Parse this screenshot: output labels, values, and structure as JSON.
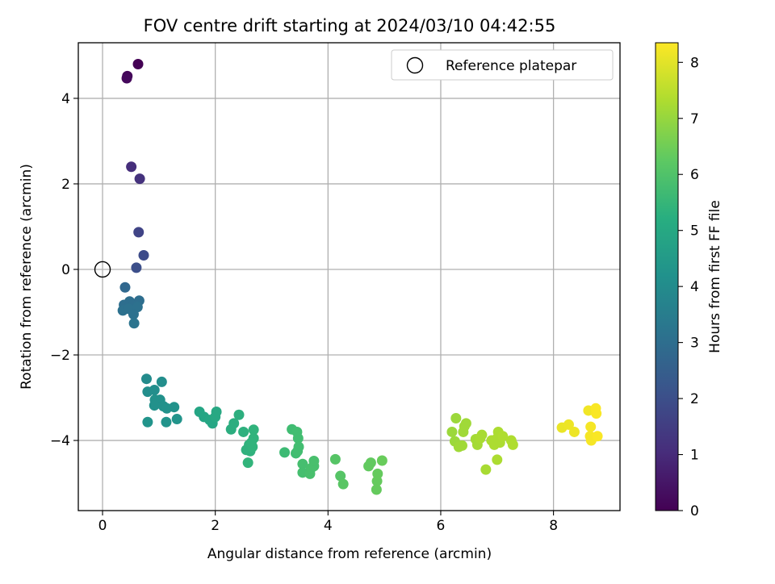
{
  "chart_data": {
    "type": "scatter",
    "title": "FOV centre drift starting at 2024/03/10 04:42:55",
    "xlabel": "Angular distance from reference (arcmin)",
    "ylabel": "Rotation from reference (arcmin)",
    "xlim": [
      -0.43,
      9.18
    ],
    "ylim": [
      -5.64,
      5.3
    ],
    "xticks": [
      0,
      2,
      4,
      6,
      8
    ],
    "yticks": [
      -4,
      -2,
      0,
      2,
      4
    ],
    "xtick_labels": [
      "0",
      "2",
      "4",
      "6",
      "8"
    ],
    "ytick_labels": [
      "−4",
      "−2",
      "0",
      "2",
      "4"
    ],
    "grid": true,
    "legend": {
      "position": "upper right",
      "entries": [
        "Reference platepar"
      ]
    },
    "reference_point": {
      "x": 0,
      "y": 0,
      "label": "Reference platepar"
    },
    "colorbar": {
      "label": "Hours from first FF file",
      "range": [
        0,
        8.35
      ],
      "ticks": [
        0,
        1,
        2,
        3,
        4,
        5,
        6,
        7,
        8
      ],
      "tick_labels": [
        "0",
        "1",
        "2",
        "3",
        "4",
        "5",
        "6",
        "7",
        "8"
      ],
      "colormap": "viridis"
    },
    "points": [
      {
        "x": 0.63,
        "y": 4.8,
        "c": 0.0
      },
      {
        "x": 0.44,
        "y": 4.52,
        "c": 0.1
      },
      {
        "x": 0.43,
        "y": 4.47,
        "c": 0.2
      },
      {
        "x": 0.51,
        "y": 2.4,
        "c": 1.1
      },
      {
        "x": 0.66,
        "y": 2.12,
        "c": 1.2
      },
      {
        "x": 0.64,
        "y": 0.87,
        "c": 1.7
      },
      {
        "x": 0.73,
        "y": 0.33,
        "c": 1.9
      },
      {
        "x": 0.6,
        "y": 0.04,
        "c": 2.0
      },
      {
        "x": 0.4,
        "y": -0.42,
        "c": 2.8
      },
      {
        "x": 0.38,
        "y": -0.83,
        "c": 3.0
      },
      {
        "x": 0.48,
        "y": -0.75,
        "c": 3.0
      },
      {
        "x": 0.65,
        "y": -0.73,
        "c": 3.0
      },
      {
        "x": 0.55,
        "y": -0.83,
        "c": 3.0
      },
      {
        "x": 0.36,
        "y": -0.96,
        "c": 3.1
      },
      {
        "x": 0.46,
        "y": -0.92,
        "c": 3.1
      },
      {
        "x": 0.62,
        "y": -0.88,
        "c": 3.1
      },
      {
        "x": 0.55,
        "y": -1.05,
        "c": 3.1
      },
      {
        "x": 0.56,
        "y": -1.26,
        "c": 3.2
      },
      {
        "x": 0.78,
        "y": -2.56,
        "c": 4.0
      },
      {
        "x": 0.8,
        "y": -2.86,
        "c": 4.1
      },
      {
        "x": 0.92,
        "y": -2.82,
        "c": 4.1
      },
      {
        "x": 1.05,
        "y": -2.63,
        "c": 4.1
      },
      {
        "x": 0.93,
        "y": -3.05,
        "c": 4.2
      },
      {
        "x": 0.97,
        "y": -3.12,
        "c": 4.2
      },
      {
        "x": 1.02,
        "y": -3.05,
        "c": 4.2
      },
      {
        "x": 0.92,
        "y": -3.18,
        "c": 4.2
      },
      {
        "x": 1.08,
        "y": -3.2,
        "c": 4.2
      },
      {
        "x": 1.14,
        "y": -3.25,
        "c": 4.25
      },
      {
        "x": 1.27,
        "y": -3.22,
        "c": 4.25
      },
      {
        "x": 1.32,
        "y": -3.5,
        "c": 4.3
      },
      {
        "x": 1.13,
        "y": -3.57,
        "c": 4.3
      },
      {
        "x": 0.8,
        "y": -3.57,
        "c": 4.3
      },
      {
        "x": 1.72,
        "y": -3.33,
        "c": 4.9
      },
      {
        "x": 1.8,
        "y": -3.45,
        "c": 4.9
      },
      {
        "x": 1.9,
        "y": -3.52,
        "c": 4.95
      },
      {
        "x": 1.95,
        "y": -3.6,
        "c": 4.95
      },
      {
        "x": 2.0,
        "y": -3.45,
        "c": 5.0
      },
      {
        "x": 2.02,
        "y": -3.33,
        "c": 5.0
      },
      {
        "x": 2.28,
        "y": -3.74,
        "c": 5.2
      },
      {
        "x": 2.33,
        "y": -3.6,
        "c": 5.2
      },
      {
        "x": 2.42,
        "y": -3.4,
        "c": 5.25
      },
      {
        "x": 2.5,
        "y": -3.8,
        "c": 5.3
      },
      {
        "x": 2.55,
        "y": -4.22,
        "c": 5.35
      },
      {
        "x": 2.6,
        "y": -4.1,
        "c": 5.35
      },
      {
        "x": 2.62,
        "y": -4.25,
        "c": 5.35
      },
      {
        "x": 2.66,
        "y": -4.15,
        "c": 5.4
      },
      {
        "x": 2.68,
        "y": -3.95,
        "c": 5.4
      },
      {
        "x": 2.68,
        "y": -3.75,
        "c": 5.4
      },
      {
        "x": 2.64,
        "y": -4.05,
        "c": 5.4
      },
      {
        "x": 2.58,
        "y": -4.52,
        "c": 5.45
      },
      {
        "x": 3.23,
        "y": -4.28,
        "c": 5.7
      },
      {
        "x": 3.36,
        "y": -3.74,
        "c": 5.75
      },
      {
        "x": 3.43,
        "y": -4.3,
        "c": 5.75
      },
      {
        "x": 3.45,
        "y": -3.8,
        "c": 5.8
      },
      {
        "x": 3.47,
        "y": -3.95,
        "c": 5.8
      },
      {
        "x": 3.48,
        "y": -4.15,
        "c": 5.8
      },
      {
        "x": 3.46,
        "y": -4.25,
        "c": 5.8
      },
      {
        "x": 3.55,
        "y": -4.55,
        "c": 5.85
      },
      {
        "x": 3.55,
        "y": -4.75,
        "c": 5.85
      },
      {
        "x": 3.68,
        "y": -4.78,
        "c": 5.9
      },
      {
        "x": 3.7,
        "y": -4.65,
        "c": 5.9
      },
      {
        "x": 3.75,
        "y": -4.6,
        "c": 5.9
      },
      {
        "x": 3.75,
        "y": -4.48,
        "c": 5.9
      },
      {
        "x": 4.13,
        "y": -4.44,
        "c": 6.1
      },
      {
        "x": 4.22,
        "y": -4.83,
        "c": 6.1
      },
      {
        "x": 4.27,
        "y": -5.02,
        "c": 6.15
      },
      {
        "x": 4.72,
        "y": -4.6,
        "c": 6.3
      },
      {
        "x": 4.76,
        "y": -4.52,
        "c": 6.3
      },
      {
        "x": 4.88,
        "y": -4.78,
        "c": 6.35
      },
      {
        "x": 4.87,
        "y": -4.95,
        "c": 6.35
      },
      {
        "x": 4.86,
        "y": -5.15,
        "c": 6.35
      },
      {
        "x": 4.96,
        "y": -4.47,
        "c": 6.4
      },
      {
        "x": 6.2,
        "y": -3.8,
        "c": 7.1
      },
      {
        "x": 6.27,
        "y": -3.48,
        "c": 7.1
      },
      {
        "x": 6.25,
        "y": -4.02,
        "c": 7.1
      },
      {
        "x": 6.32,
        "y": -4.15,
        "c": 7.15
      },
      {
        "x": 6.38,
        "y": -4.12,
        "c": 7.15
      },
      {
        "x": 6.42,
        "y": -3.67,
        "c": 7.15
      },
      {
        "x": 6.45,
        "y": -3.6,
        "c": 7.15
      },
      {
        "x": 6.4,
        "y": -3.8,
        "c": 7.15
      },
      {
        "x": 6.62,
        "y": -3.97,
        "c": 7.2
      },
      {
        "x": 6.65,
        "y": -4.1,
        "c": 7.2
      },
      {
        "x": 6.7,
        "y": -3.95,
        "c": 7.25
      },
      {
        "x": 6.73,
        "y": -3.87,
        "c": 7.25
      },
      {
        "x": 6.8,
        "y": -4.68,
        "c": 7.25
      },
      {
        "x": 6.9,
        "y": -4.0,
        "c": 7.3
      },
      {
        "x": 6.95,
        "y": -4.1,
        "c": 7.3
      },
      {
        "x": 7.0,
        "y": -3.95,
        "c": 7.3
      },
      {
        "x": 7.02,
        "y": -3.8,
        "c": 7.3
      },
      {
        "x": 7.05,
        "y": -4.05,
        "c": 7.3
      },
      {
        "x": 7.0,
        "y": -4.45,
        "c": 7.3
      },
      {
        "x": 7.1,
        "y": -3.9,
        "c": 7.35
      },
      {
        "x": 7.25,
        "y": -4.0,
        "c": 7.35
      },
      {
        "x": 7.28,
        "y": -4.1,
        "c": 7.35
      },
      {
        "x": 8.15,
        "y": -3.7,
        "c": 8.1
      },
      {
        "x": 8.27,
        "y": -3.63,
        "c": 8.15
      },
      {
        "x": 8.37,
        "y": -3.8,
        "c": 8.15
      },
      {
        "x": 8.62,
        "y": -3.3,
        "c": 8.2
      },
      {
        "x": 8.66,
        "y": -3.68,
        "c": 8.25
      },
      {
        "x": 8.65,
        "y": -3.9,
        "c": 8.25
      },
      {
        "x": 8.67,
        "y": -4.0,
        "c": 8.25
      },
      {
        "x": 8.75,
        "y": -3.25,
        "c": 8.3
      },
      {
        "x": 8.76,
        "y": -3.37,
        "c": 8.3
      },
      {
        "x": 8.78,
        "y": -3.9,
        "c": 8.3
      }
    ]
  }
}
